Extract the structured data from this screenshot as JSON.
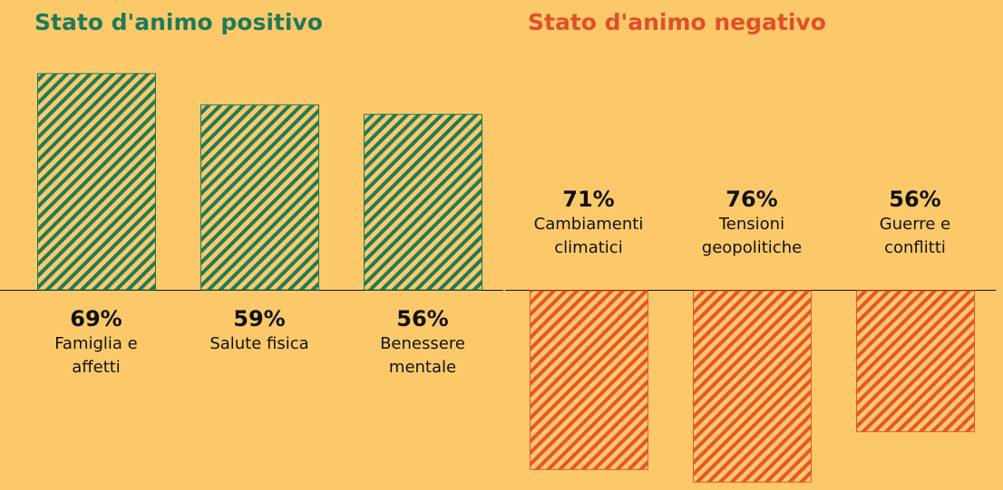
{
  "chart_data": [
    {
      "type": "bar",
      "direction": "up",
      "title": "Stato d'animo positivo",
      "title_color": "#1f7a5a",
      "categories": [
        "Famiglia e affetti",
        "Salute fisica",
        "Benessere mentale"
      ],
      "values": [
        69,
        59,
        56
      ],
      "value_labels": [
        "69%",
        "59%",
        "56%"
      ],
      "color": "#1f7a5a"
    },
    {
      "type": "bar",
      "direction": "down",
      "title": "Stato d'animo negativo",
      "title_color": "#e0502a",
      "categories": [
        "Cambiamenti climatici",
        "Tensioni geopolitiche",
        "Guerre e conflitti"
      ],
      "values": [
        71,
        76,
        56
      ],
      "value_labels": [
        "71%",
        "76%",
        "56%"
      ],
      "color": "#e8542c"
    }
  ]
}
